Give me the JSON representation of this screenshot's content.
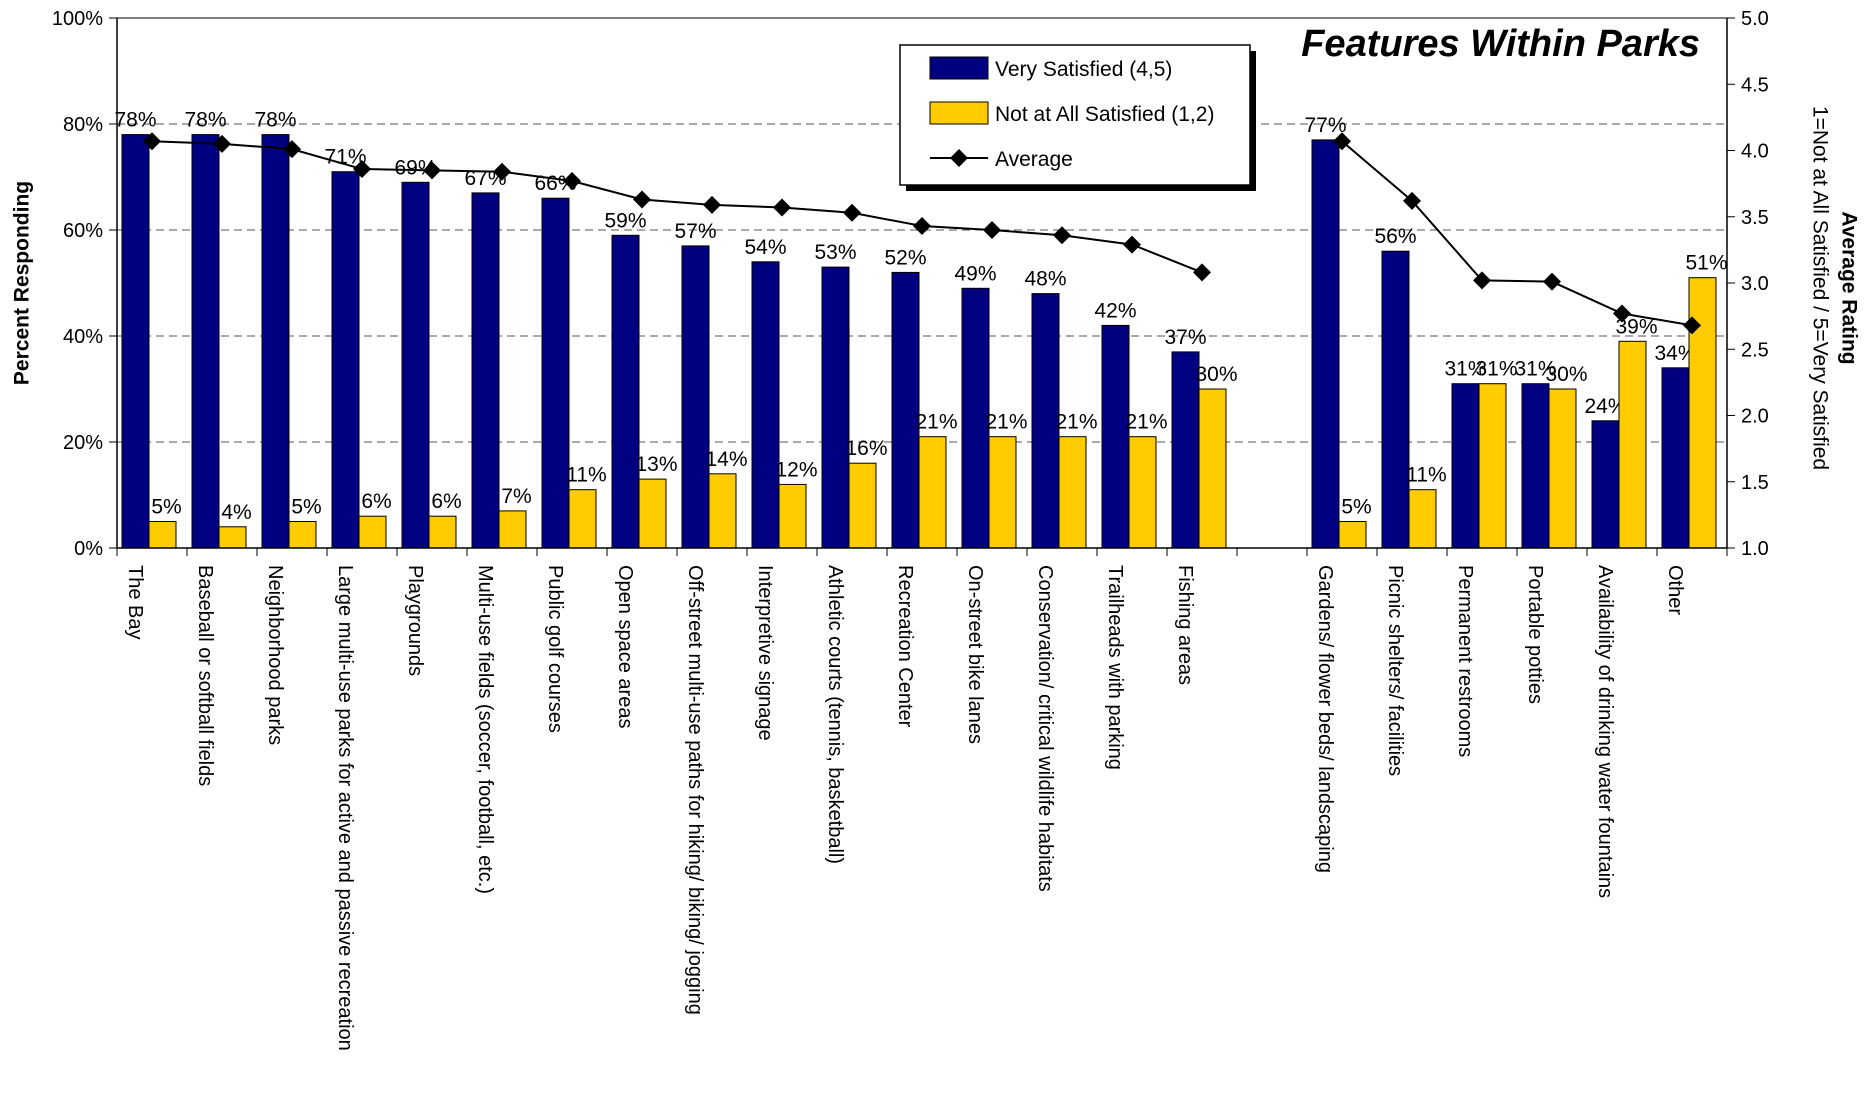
{
  "chart_data": {
    "type": "bar",
    "title": "Features Within Parks",
    "ylabel": "Percent Responding",
    "y2label_line1": "Average Rating",
    "y2label_line2": "1=Not at All Satisfied / 5=Very Satisfied",
    "ylim": [
      0,
      100
    ],
    "y2lim": [
      1.0,
      5.0
    ],
    "yticks": [
      "0%",
      "20%",
      "40%",
      "60%",
      "80%",
      "100%"
    ],
    "y2ticks": [
      "1.0",
      "1.5",
      "2.0",
      "2.5",
      "3.0",
      "3.5",
      "4.0",
      "4.5",
      "5.0"
    ],
    "grid": "dashed horizontal",
    "legend_position": "top-center",
    "colors": {
      "very_satisfied": "#000080",
      "not_satisfied": "#FFCC00",
      "average": "#000000"
    },
    "groups": [
      {
        "categories": [
          "The Bay",
          "Baseball or softball fields",
          "Neighborhood parks",
          "Large multi-use parks for active and passive recreation",
          "Playgrounds",
          "Multi-use fields (soccer, football, etc.)",
          "Public golf courses",
          "Open space areas",
          "Off-street multi-use paths for hiking/ biking/ jogging",
          "Interpretive signage",
          "Athletic courts (tennis, basketball)",
          "Recreation Center",
          "On-street bike lanes",
          "Conservation/ critical wildlife habitats",
          "Trailheads with parking",
          "Fishing areas"
        ],
        "very_satisfied": [
          78,
          78,
          78,
          71,
          69,
          67,
          66,
          59,
          57,
          54,
          53,
          52,
          49,
          48,
          42,
          37
        ],
        "not_satisfied": [
          5,
          4,
          5,
          6,
          6,
          7,
          11,
          13,
          14,
          12,
          16,
          21,
          21,
          21,
          21,
          30
        ],
        "average": [
          4.07,
          4.05,
          4.01,
          3.86,
          3.85,
          3.84,
          3.77,
          3.63,
          3.59,
          3.57,
          3.53,
          3.43,
          3.4,
          3.36,
          3.29,
          3.08
        ]
      },
      {
        "categories": [
          "Gardens/ flower beds/ landscaping",
          "Picnic shelters/ facilities",
          "Permanent restrooms",
          "Portable potties",
          "Availability of drinking water fountains",
          "Other"
        ],
        "very_satisfied": [
          77,
          56,
          31,
          31,
          24,
          34
        ],
        "not_satisfied": [
          5,
          11,
          31,
          30,
          39,
          51
        ],
        "average": [
          4.07,
          3.62,
          3.02,
          3.01,
          2.77,
          2.68
        ]
      }
    ],
    "series": [
      {
        "name": "Very Satisfied (4,5)",
        "axis": "left"
      },
      {
        "name": "Not at All Satisfied (1,2)",
        "axis": "left"
      },
      {
        "name": "Average",
        "axis": "right"
      }
    ]
  }
}
